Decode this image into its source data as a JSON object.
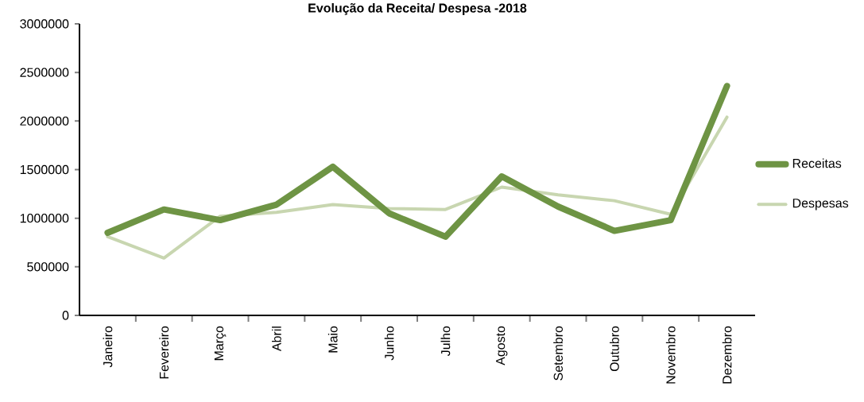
{
  "chart_data": {
    "type": "line",
    "title": "Evolução  da Receita/ Despesa -2018",
    "categories": [
      "Janeiro",
      "Fevereiro",
      "Março",
      "Abril",
      "Maio",
      "Junho",
      "Julho",
      "Agosto",
      "Setembro",
      "Outubro",
      "Novembro",
      "Dezembro"
    ],
    "series": [
      {
        "name": "Receitas",
        "color": "#6e9444",
        "values": [
          850000,
          1090000,
          980000,
          1140000,
          1530000,
          1050000,
          810000,
          1430000,
          1120000,
          870000,
          980000,
          2360000
        ]
      },
      {
        "name": "Despesas",
        "color": "#c8d6b0",
        "values": [
          810000,
          590000,
          1020000,
          1060000,
          1140000,
          1100000,
          1090000,
          1320000,
          1240000,
          1180000,
          1040000,
          2040000
        ]
      }
    ],
    "ylim": [
      0,
      3000000
    ],
    "yticks": [
      0,
      500000,
      1000000,
      1500000,
      2000000,
      2500000,
      3000000
    ],
    "grid": false,
    "legend": "right",
    "marker": "none"
  }
}
